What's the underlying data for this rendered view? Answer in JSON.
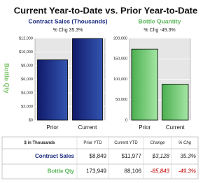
{
  "title": "Current Year-to-Date vs. Prior Year-to-Date",
  "side_label": "Bottle Qty",
  "chart_data": [
    {
      "type": "bar",
      "title": "Contract Sales (Thousands)",
      "subtitle": "% Chg 35.3%",
      "categories": [
        "Prior",
        "Current"
      ],
      "values": [
        8849,
        11977
      ],
      "color": "#1b2a80",
      "ylim": [
        0,
        12000
      ],
      "yticks": [
        {
          "value": 0,
          "label": "$0"
        },
        {
          "value": 2000,
          "label": "$2,000"
        },
        {
          "value": 4000,
          "label": "$4,000"
        },
        {
          "value": 6000,
          "label": "$6,000"
        },
        {
          "value": 8000,
          "label": "$8,000"
        },
        {
          "value": 10000,
          "label": "$10,000"
        },
        {
          "value": 12000,
          "label": "$12,000"
        }
      ],
      "grid": true
    },
    {
      "type": "bar",
      "title": "Bottle Quantity",
      "subtitle": "% Chg -49.3%",
      "categories": [
        "Prior",
        "Current"
      ],
      "values": [
        173949,
        88106
      ],
      "color": "#5cb85c",
      "ylim": [
        0,
        200000
      ],
      "yticks": [
        0,
        {
          "value": 50000,
          "label": "50,000"
        },
        {
          "value": 100000,
          "label": "100,000"
        },
        {
          "value": 150000,
          "label": "150,000"
        },
        {
          "value": 200000,
          "label": "200,000"
        }
      ],
      "grid": true
    }
  ],
  "table": {
    "header": [
      "$ in Thousands",
      "Prior YTD",
      "Current YTD",
      "Change",
      "% Chg"
    ],
    "rows": [
      [
        "Contract Sales",
        "$8,849",
        "$11,977",
        "$3,128",
        "35.3%"
      ],
      [
        "Bottle Qty",
        "173,949",
        "88,106",
        "-85,843",
        "-49.3%"
      ]
    ]
  }
}
